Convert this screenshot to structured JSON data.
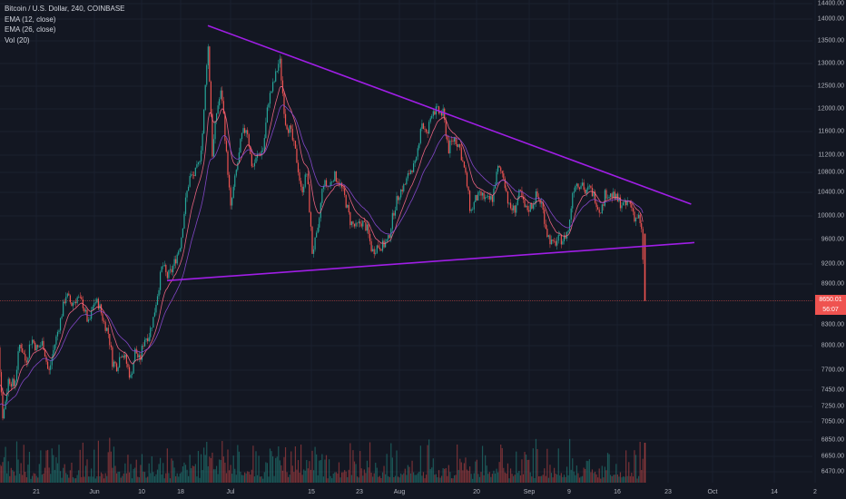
{
  "header": {
    "symbol_line": "Bitcoin / U.S. Dollar, 240, COINBASE",
    "indicators": [
      "EMA (12, close)",
      "EMA (26, close)",
      "Vol (20)"
    ]
  },
  "last_price": {
    "value": "8650.01",
    "countdown": "56:07"
  },
  "colors": {
    "background": "#131722",
    "up": "#26a69a",
    "down": "#ef5350",
    "ema12": "#ff6a8a",
    "ema26": "#8e4bd8",
    "trendline": "#a01ee6",
    "grid": "#1f2433"
  },
  "chart_data": {
    "type": "line",
    "y_ticks": [
      "14400.00",
      "14000.00",
      "13500.00",
      "13000.00",
      "12500.00",
      "12000.00",
      "11600.00",
      "11200.00",
      "10800.00",
      "10400.00",
      "10000.00",
      "9600.00",
      "9200.00",
      "8900.00",
      "8300.00",
      "8000.00",
      "7700.00",
      "7450.00",
      "7250.00",
      "7050.00",
      "6850.00",
      "6650.00",
      "6470.00"
    ],
    "x_ticks": [
      "21",
      "Jun",
      "10",
      "18",
      "Jul",
      "15",
      "23",
      "Aug",
      "20",
      "Sep",
      "9",
      "16",
      "23",
      "Oct",
      "14",
      "2"
    ],
    "trendlines": [
      {
        "name": "",
        "points": [
          [
            "Jun 26",
            13850
          ],
          [
            "Oct 8",
            10200
          ]
        ]
      },
      {
        "name": "",
        "points": [
          [
            "Jun 17",
            8950
          ],
          [
            "Oct 9",
            9550
          ]
        ]
      }
    ],
    "price_path": [
      [
        "May 14",
        6950
      ],
      [
        "May 15",
        8300
      ],
      [
        "May 16",
        7100
      ],
      [
        "May 17",
        7600
      ],
      [
        "May 18",
        7500
      ],
      [
        "May 19",
        8050
      ],
      [
        "May 20",
        7800
      ],
      [
        "May 21",
        8100
      ],
      [
        "May 22",
        7950
      ],
      [
        "May 23",
        8050
      ],
      [
        "May 24",
        7650
      ],
      [
        "May 25",
        8000
      ],
      [
        "May 26",
        8350
      ],
      [
        "May 27",
        8750
      ],
      [
        "May 28",
        8600
      ],
      [
        "May 29",
        8700
      ],
      [
        "May 30",
        8600
      ],
      [
        "May 31",
        8300
      ],
      [
        "Jun 1",
        8650
      ],
      [
        "Jun 2",
        8600
      ],
      [
        "Jun 3",
        8350
      ],
      [
        "Jun 4",
        8200
      ],
      [
        "Jun 5",
        7800
      ],
      [
        "Jun 6",
        7750
      ],
      [
        "Jun 7",
        7950
      ],
      [
        "Jun 8",
        7800
      ],
      [
        "Jun 9",
        7600
      ],
      [
        "Jun 10",
        7950
      ],
      [
        "Jun 11",
        7800
      ],
      [
        "Jun 12",
        8100
      ],
      [
        "Jun 13",
        8150
      ],
      [
        "Jun 14",
        8400
      ],
      [
        "Jun 15",
        8800
      ],
      [
        "Jun 16",
        9200
      ],
      [
        "Jun 17",
        9000
      ],
      [
        "Jun 18",
        9100
      ],
      [
        "Jun 19",
        9300
      ],
      [
        "Jun 20",
        9550
      ],
      [
        "Jun 21",
        10200
      ],
      [
        "Jun 22",
        10700
      ],
      [
        "Jun 23",
        10750
      ],
      [
        "Jun 24",
        11000
      ],
      [
        "Jun 25",
        11700
      ],
      [
        "Jun 26",
        13500
      ],
      [
        "Jun 27",
        11200
      ],
      [
        "Jun 28",
        12000
      ],
      [
        "Jun 29",
        12400
      ],
      [
        "Jun 30",
        11300
      ],
      [
        "Jul 1",
        10100
      ],
      [
        "Jul 2",
        10800
      ],
      [
        "Jul 3",
        11500
      ],
      [
        "Jul 4",
        11700
      ],
      [
        "Jul 5",
        10900
      ],
      [
        "Jul 6",
        11200
      ],
      [
        "Jul 7",
        11300
      ],
      [
        "Jul 8",
        12200
      ],
      [
        "Jul 9",
        12600
      ],
      [
        "Jul 10",
        13100
      ],
      [
        "Jul 11",
        11800
      ],
      [
        "Jul 12",
        11600
      ],
      [
        "Jul 13",
        11200
      ],
      [
        "Jul 14",
        10400
      ],
      [
        "Jul 15",
        10800
      ],
      [
        "Jul 16",
        9400
      ],
      [
        "Jul 17",
        9700
      ],
      [
        "Jul 18",
        10600
      ],
      [
        "Jul 19",
        10500
      ],
      [
        "Jul 20",
        10750
      ],
      [
        "Jul 21",
        10600
      ],
      [
        "Jul 22",
        10300
      ],
      [
        "Jul 23",
        9900
      ],
      [
        "Jul 24",
        9800
      ],
      [
        "Jul 25",
        9900
      ],
      [
        "Jul 26",
        9800
      ],
      [
        "Jul 27",
        9400
      ],
      [
        "Jul 28",
        9500
      ],
      [
        "Jul 29",
        9500
      ],
      [
        "Jul 30",
        9600
      ],
      [
        "Jul 31",
        10100
      ],
      [
        "Aug 1",
        10400
      ],
      [
        "Aug 2",
        10550
      ],
      [
        "Aug 3",
        10850
      ],
      [
        "Aug 4",
        11000
      ],
      [
        "Aug 5",
        11800
      ],
      [
        "Aug 6",
        11500
      ],
      [
        "Aug 7",
        12000
      ],
      [
        "Aug 8",
        11950
      ],
      [
        "Aug 9",
        11900
      ],
      [
        "Aug 10",
        11300
      ],
      [
        "Aug 11",
        11500
      ],
      [
        "Aug 12",
        11350
      ],
      [
        "Aug 13",
        10800
      ],
      [
        "Aug 14",
        10050
      ],
      [
        "Aug 15",
        10300
      ],
      [
        "Aug 16",
        10350
      ],
      [
        "Aug 17",
        10250
      ],
      [
        "Aug 18",
        10300
      ],
      [
        "Aug 19",
        10900
      ],
      [
        "Aug 20",
        10750
      ],
      [
        "Aug 21",
        10150
      ],
      [
        "Aug 22",
        10100
      ],
      [
        "Aug 23",
        10400
      ],
      [
        "Aug 24",
        10100
      ],
      [
        "Aug 25",
        10150
      ],
      [
        "Aug 26",
        10350
      ],
      [
        "Aug 27",
        10200
      ],
      [
        "Aug 28",
        9700
      ],
      [
        "Aug 29",
        9500
      ],
      [
        "Aug 30",
        9600
      ],
      [
        "Aug 31",
        9600
      ],
      [
        "Sep 1",
        9800
      ],
      [
        "Sep 2",
        10400
      ],
      [
        "Sep 3",
        10600
      ],
      [
        "Sep 4",
        10550
      ],
      [
        "Sep 5",
        10600
      ],
      [
        "Sep 6",
        10350
      ],
      [
        "Sep 7",
        10500
      ],
      [
        "Sep 8",
        10400
      ],
      [
        "Sep 9",
        10300
      ],
      [
        "Sep 10",
        10100
      ],
      [
        "Sep 11",
        10150
      ],
      [
        "Sep 12",
        10400
      ],
      [
        "Sep 13",
        10350
      ],
      [
        "Sep 14",
        10350
      ],
      [
        "Sep 15",
        10300
      ],
      [
        "Sep 16",
        10250
      ],
      [
        "Sep 17",
        10200
      ],
      [
        "Sep 18",
        10150
      ],
      [
        "Sep 19",
        10250
      ],
      [
        "Sep 20",
        10150
      ],
      [
        "Sep 21",
        9950
      ],
      [
        "Sep 22",
        10000
      ],
      [
        "Sep 23",
        9700
      ],
      [
        "Sep 24",
        8650.01
      ]
    ]
  }
}
